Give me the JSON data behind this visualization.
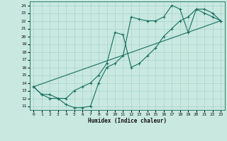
{
  "xlabel": "Humidex (Indice chaleur)",
  "bg_color": "#c8e8e0",
  "grid_color": "#a8d4cc",
  "line_color": "#1a7060",
  "xlim": [
    -0.5,
    23.5
  ],
  "ylim": [
    10.5,
    24.5
  ],
  "xticks": [
    0,
    1,
    2,
    3,
    4,
    5,
    6,
    7,
    8,
    9,
    10,
    11,
    12,
    13,
    14,
    15,
    16,
    17,
    18,
    19,
    20,
    21,
    22,
    23
  ],
  "yticks": [
    11,
    12,
    13,
    14,
    15,
    16,
    17,
    18,
    19,
    20,
    21,
    22,
    23,
    24
  ],
  "line1_x": [
    0,
    1,
    2,
    3,
    4,
    5,
    6,
    7,
    8,
    9,
    10,
    11,
    12,
    13,
    14,
    15,
    16,
    17,
    18,
    19,
    20,
    21,
    22,
    23
  ],
  "line1_y": [
    13.5,
    12.5,
    12.0,
    12.0,
    11.2,
    10.8,
    10.8,
    11.0,
    14.0,
    16.0,
    16.5,
    17.5,
    22.5,
    22.2,
    22.0,
    22.0,
    22.5,
    24.0,
    23.5,
    20.5,
    23.5,
    23.0,
    22.5,
    22.0
  ],
  "line2_x": [
    0,
    1,
    2,
    3,
    4,
    5,
    6,
    7,
    8,
    9,
    10,
    11,
    12,
    13,
    14,
    15,
    16,
    17,
    18,
    19,
    20,
    21,
    22,
    23
  ],
  "line2_y": [
    13.5,
    12.5,
    12.5,
    12.0,
    12.0,
    13.0,
    13.5,
    14.0,
    15.0,
    16.5,
    20.5,
    20.2,
    16.0,
    16.5,
    17.5,
    18.5,
    20.0,
    21.0,
    22.0,
    22.5,
    23.5,
    23.5,
    23.0,
    22.0
  ],
  "line3_x": [
    0,
    23
  ],
  "line3_y": [
    13.5,
    22.0
  ]
}
